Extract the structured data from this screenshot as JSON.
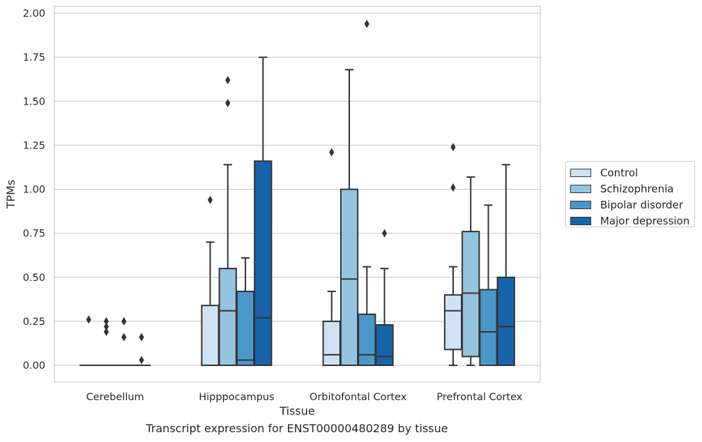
{
  "caption": "Transcript expression for ENST00000480289 by tissue",
  "chart_data": {
    "type": "box",
    "xlabel": "Tissue",
    "ylabel": "TPMs",
    "ylim": [
      -0.095,
      2.04
    ],
    "yticks": [
      0.0,
      0.25,
      0.5,
      0.75,
      1.0,
      1.25,
      1.5,
      1.75,
      2.0
    ],
    "ytick_labels": [
      "0.00",
      "0.25",
      "0.50",
      "0.75",
      "1.00",
      "1.25",
      "1.50",
      "1.75",
      "2.00"
    ],
    "grid": "horizontal",
    "legend_placement": "outside-right",
    "categories": [
      "Cerebellum",
      "Hipppocampus",
      "Orbitofontal Cortex",
      "Prefrontal Cortex"
    ],
    "series": [
      {
        "name": "Control",
        "color": "#d0e1f2",
        "boxes": [
          {
            "whisker_low": 0,
            "q1": 0,
            "median": 0,
            "q3": 0,
            "whisker_high": 0,
            "outliers": [
              0.26
            ]
          },
          {
            "whisker_low": 0,
            "q1": 0,
            "median": 0,
            "q3": 0.34,
            "whisker_high": 0.7,
            "outliers": [
              0.94
            ]
          },
          {
            "whisker_low": 0,
            "q1": 0,
            "median": 0.06,
            "q3": 0.25,
            "whisker_high": 0.42,
            "outliers": [
              1.21
            ]
          },
          {
            "whisker_low": 0,
            "q1": 0.09,
            "median": 0.31,
            "q3": 0.4,
            "whisker_high": 0.56,
            "outliers": [
              1.01,
              1.24
            ]
          }
        ]
      },
      {
        "name": "Schizophrenia",
        "color": "#94c4df",
        "boxes": [
          {
            "whisker_low": 0,
            "q1": 0,
            "median": 0,
            "q3": 0,
            "whisker_high": 0,
            "outliers": [
              0.19,
              0.22,
              0.25
            ]
          },
          {
            "whisker_low": 0,
            "q1": 0,
            "median": 0.31,
            "q3": 0.55,
            "whisker_high": 1.14,
            "outliers": [
              1.49,
              1.62
            ]
          },
          {
            "whisker_low": 0,
            "q1": 0,
            "median": 0.49,
            "q3": 1.0,
            "whisker_high": 1.68,
            "outliers": []
          },
          {
            "whisker_low": 0,
            "q1": 0.05,
            "median": 0.41,
            "q3": 0.76,
            "whisker_high": 1.07,
            "outliers": []
          }
        ]
      },
      {
        "name": "Bipolar disorder",
        "color": "#4a98c9",
        "boxes": [
          {
            "whisker_low": 0,
            "q1": 0,
            "median": 0,
            "q3": 0,
            "whisker_high": 0,
            "outliers": [
              0.16,
              0.25
            ]
          },
          {
            "whisker_low": 0,
            "q1": 0,
            "median": 0.03,
            "q3": 0.42,
            "whisker_high": 0.61,
            "outliers": []
          },
          {
            "whisker_low": 0,
            "q1": 0,
            "median": 0.06,
            "q3": 0.29,
            "whisker_high": 0.56,
            "outliers": [
              1.94
            ]
          },
          {
            "whisker_low": 0,
            "q1": 0,
            "median": 0.19,
            "q3": 0.43,
            "whisker_high": 0.91,
            "outliers": []
          }
        ]
      },
      {
        "name": "Major depression",
        "color": "#1764ab",
        "boxes": [
          {
            "whisker_low": 0,
            "q1": 0,
            "median": 0,
            "q3": 0,
            "whisker_high": 0,
            "outliers": [
              0.03,
              0.16
            ]
          },
          {
            "whisker_low": 0,
            "q1": 0,
            "median": 0.27,
            "q3": 1.16,
            "whisker_high": 1.75,
            "outliers": []
          },
          {
            "whisker_low": 0,
            "q1": 0,
            "median": 0.05,
            "q3": 0.23,
            "whisker_high": 0.55,
            "outliers": [
              0.75
            ]
          },
          {
            "whisker_low": 0,
            "q1": 0,
            "median": 0.22,
            "q3": 0.5,
            "whisker_high": 1.14,
            "outliers": []
          }
        ]
      }
    ]
  }
}
